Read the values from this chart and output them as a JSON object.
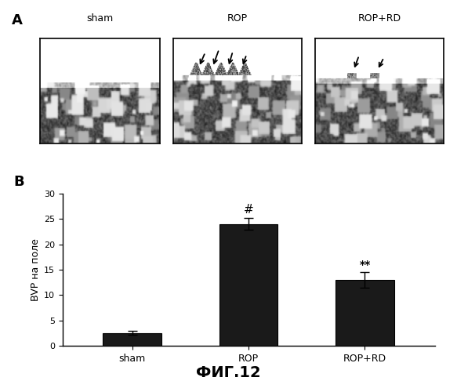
{
  "panel_A_labels": [
    "sham",
    "ROP",
    "ROP+RD"
  ],
  "panel_A_label": "A",
  "panel_B_label": "B",
  "bar_categories": [
    "sham",
    "ROP",
    "ROP+RD"
  ],
  "bar_values": [
    2.5,
    24.0,
    13.0
  ],
  "bar_errors": [
    0.4,
    1.2,
    1.5
  ],
  "bar_color": "#1a1a1a",
  "ylabel": "BVP на поле",
  "ylim": [
    0,
    30
  ],
  "yticks": [
    0,
    5,
    10,
    15,
    20,
    25,
    30
  ],
  "significance_rop": "#",
  "significance_roprd": "**",
  "figure_title": "ФИГ.12",
  "background_color": "#ffffff"
}
